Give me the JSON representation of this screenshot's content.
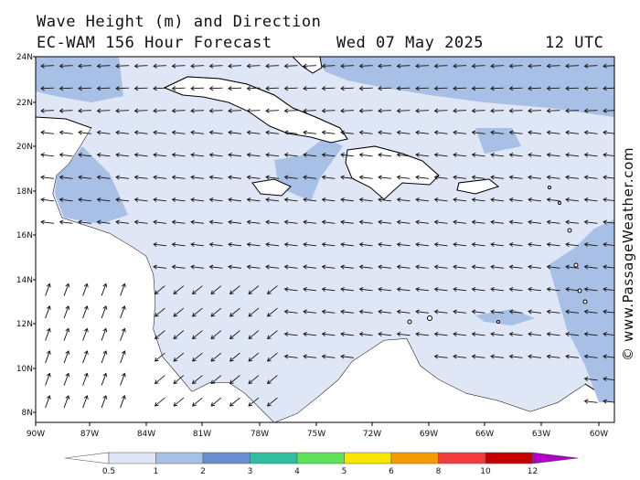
{
  "title": {
    "line1": "Wave Height (m) and Direction",
    "model": "EC-WAM 156 Hour Forecast",
    "date": "Wed 07 May 2025",
    "time": "12 UTC"
  },
  "axes": {
    "lat_labels": [
      "24N",
      "22N",
      "20N",
      "18N",
      "16N",
      "14N",
      "12N",
      "10N",
      "8N"
    ],
    "lon_labels": [
      "90W",
      "87W",
      "84W",
      "81W",
      "78W",
      "75W",
      "72W",
      "69W",
      "66W",
      "63W",
      "60W"
    ]
  },
  "legend": {
    "labels": [
      "0.5",
      "1",
      "2",
      "3",
      "4",
      "5",
      "6",
      "8",
      "10",
      "12"
    ],
    "colors": [
      "#dfe6f6",
      "#a9c0e6",
      "#6a8fd0",
      "#2fbf9f",
      "#5ee35a",
      "#f7e600",
      "#f79a00",
      "#f23c3c",
      "#c50000",
      "#b000c8"
    ]
  },
  "credit": "© www.PassageWeather.com",
  "colors": {
    "sea_low": "#dfe6f6",
    "sea_mid": "#a9c0e6",
    "land": "#ffffff",
    "coast": "#000000",
    "border": "#888888"
  }
}
